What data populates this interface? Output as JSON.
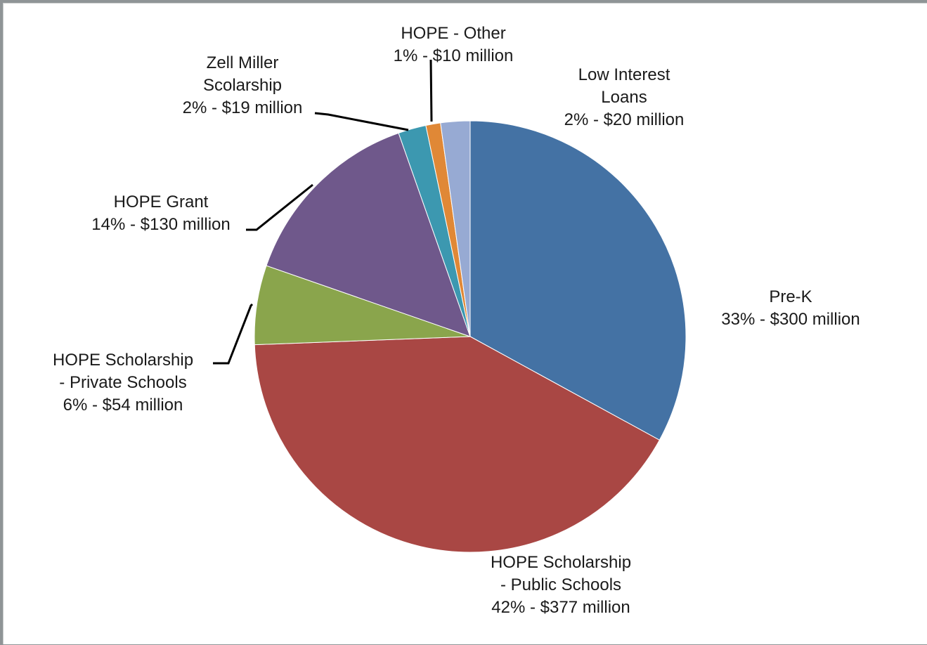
{
  "chart_data": {
    "type": "pie",
    "title": "",
    "slices": [
      {
        "name": "Pre-K",
        "label_lines": [
          "Pre-K",
          "33% - $300 million"
        ],
        "percent": 33,
        "value": 300,
        "color": "#4472a4"
      },
      {
        "name": "HOPE Scholarship - Public Schools",
        "label_lines": [
          "HOPE Scholarship",
          "- Public Schools",
          "42% - $377 million"
        ],
        "percent": 42,
        "value": 377,
        "color": "#a94744"
      },
      {
        "name": "HOPE Scholarship - Private Schools",
        "label_lines": [
          "HOPE Scholarship",
          "- Private Schools",
          "6% - $54 million"
        ],
        "percent": 6,
        "value": 54,
        "color": "#8aa54c"
      },
      {
        "name": "HOPE Grant",
        "label_lines": [
          "HOPE Grant",
          "14% - $130 million"
        ],
        "percent": 14,
        "value": 130,
        "color": "#6f588b"
      },
      {
        "name": "Zell Miller Scolarship",
        "label_lines": [
          "Zell Miller",
          "Scolarship",
          "2% - $19 million"
        ],
        "percent": 2,
        "value": 19,
        "color": "#3c98b0"
      },
      {
        "name": "HOPE - Other",
        "label_lines": [
          "HOPE - Other",
          "1% - $10 million"
        ],
        "percent": 1,
        "value": 10,
        "color": "#e08836"
      },
      {
        "name": "Low Interest Loans",
        "label_lines": [
          "Low Interest",
          "Loans",
          "2% - $20 million"
        ],
        "percent": 2,
        "value": 20,
        "color": "#97aad3"
      }
    ],
    "units": "$ million",
    "start_angle": "12 o'clock",
    "direction": "clockwise",
    "legend": "none"
  }
}
